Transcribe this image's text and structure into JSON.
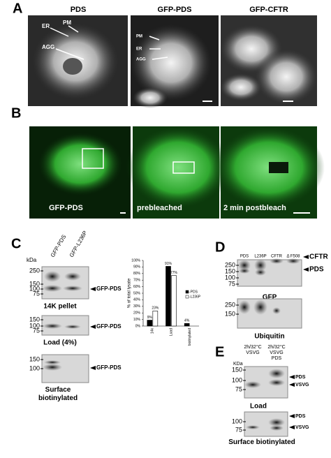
{
  "panel_a": {
    "label": "A",
    "titles": [
      "PDS",
      "GFP-PDS",
      "GFP-CFTR"
    ],
    "annotations_1": [
      "ER",
      "PM",
      "AGG"
    ],
    "annotations_2": [
      "PM",
      "ER",
      "AGG"
    ]
  },
  "panel_b": {
    "label": "B",
    "captions": [
      "GFP-PDS",
      "prebleached",
      "2 min postbleach"
    ]
  },
  "panel_c": {
    "label": "C",
    "lanes": [
      "GFP-PDS",
      "GFP-L236P"
    ],
    "kda": "kDa",
    "blots": [
      {
        "markers": [
          "250",
          "150",
          "100",
          "75"
        ],
        "band": "GFP-PDS",
        "caption": "14K pellet"
      },
      {
        "markers": [
          "150",
          "100",
          "75"
        ],
        "band": "GFP-PDS",
        "caption": "Load (4%)"
      },
      {
        "markers": [
          "150",
          "100"
        ],
        "band": "GFP-PDS",
        "caption": "Surface biotinylated"
      }
    ],
    "chart": {
      "type": "bar",
      "y_label": "% of total lysate",
      "categories": [
        "14k",
        "Load",
        "biotinylated"
      ],
      "series": [
        {
          "name": "-PDS",
          "color": "#000000",
          "values": [
            9,
            91,
            4
          ],
          "value_labels": [
            "9%",
            "91%",
            "4%"
          ]
        },
        {
          "name": "-L236P",
          "color": "#ffffff",
          "values": [
            23,
            77,
            null
          ],
          "value_labels": [
            "23%",
            "77%",
            null
          ]
        }
      ],
      "ylim": [
        0,
        100
      ],
      "yticks": [
        {
          "value": 0,
          "label": "0%"
        },
        {
          "value": 10,
          "label": "10%"
        },
        {
          "value": 20,
          "label": "20%"
        },
        {
          "value": 30,
          "label": "30%"
        },
        {
          "value": 40,
          "label": "40%"
        },
        {
          "value": 50,
          "label": "50%"
        },
        {
          "value": 60,
          "label": "60%"
        },
        {
          "value": 70,
          "label": "70%"
        },
        {
          "value": 80,
          "label": "80%"
        },
        {
          "value": 90,
          "label": "90%"
        },
        {
          "value": 100,
          "label": "100%"
        }
      ]
    }
  },
  "panel_d": {
    "label": "D",
    "lanes": [
      "PDS",
      "L236P",
      "CFTR",
      "Δ F508"
    ],
    "blots": [
      {
        "markers": [
          "250",
          "150",
          "100",
          "75"
        ],
        "bands": [
          "CFTR",
          "PDS"
        ],
        "caption": "GFP"
      },
      {
        "markers": [
          "250",
          "150"
        ],
        "caption": "Ubiquitin"
      }
    ]
  },
  "panel_e": {
    "label": "E",
    "lane_1": [
      "2h/32°C",
      "VSVG"
    ],
    "lane_2": [
      "2h/32°C",
      "VSVG",
      "PDS"
    ],
    "kda": "KDa",
    "blots": [
      {
        "markers": [
          "150",
          "100",
          "75"
        ],
        "bands": [
          "PDS",
          "VSVG"
        ],
        "caption": "Load"
      },
      {
        "markers": [
          "100",
          "75"
        ],
        "bands": [
          "PDS",
          "VSVG"
        ],
        "caption": "Surface biotinylated"
      }
    ]
  }
}
